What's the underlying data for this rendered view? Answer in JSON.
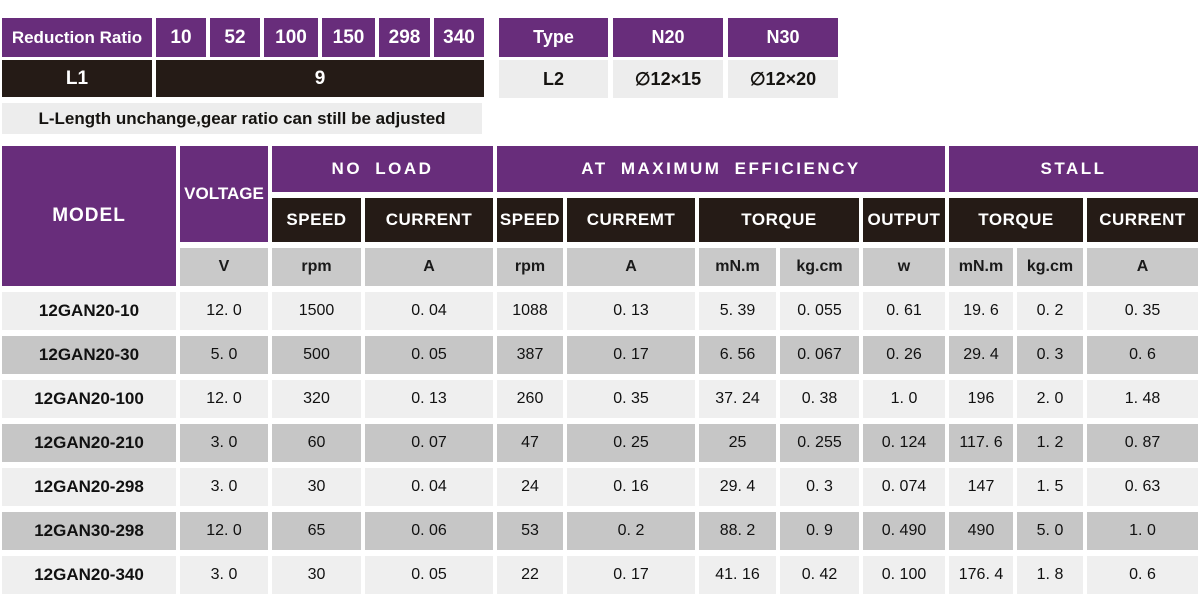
{
  "colors": {
    "accent_purple": "#682d7b",
    "header_black": "#251b16",
    "unit_gray": "#c9c9c9",
    "row_light": "#efefef",
    "row_dark": "#c6c6c6",
    "note_gray": "#ededed"
  },
  "reduction_table": {
    "header_label": "Reduction Ratio",
    "ratios": [
      "10",
      "52",
      "100",
      "150",
      "298",
      "340"
    ],
    "row_label": "L1",
    "row_value": "9",
    "note": "L-Length unchange,gear ratio can still be adjusted"
  },
  "type_table": {
    "header_label": "Type",
    "types": [
      "N20",
      "N30"
    ],
    "row_label": "L2",
    "values": [
      "∅12×15",
      "∅12×20"
    ]
  },
  "main_table": {
    "model_header": "MODEL",
    "voltage_header": "VOLTAGE",
    "groups": {
      "no_load": "NO LOAD",
      "max_eff": "AT MAXIMUM EFFICIENCY",
      "stall": "STALL"
    },
    "sub": [
      "SPEED",
      "CURRENT",
      "SPEED",
      "CURREMT",
      "TORQUE",
      "OUTPUT",
      "TORQUE",
      "CURRENT"
    ],
    "units": [
      "V",
      "rpm",
      "A",
      "rpm",
      "A",
      "mN.m",
      "kg.cm",
      "w",
      "mN.m",
      "kg.cm",
      "A"
    ],
    "rows": [
      {
        "model": "12GAN20-10",
        "values": [
          "12. 0",
          "1500",
          "0. 04",
          "1088",
          "0. 13",
          "5. 39",
          "0. 055",
          "0. 61",
          "19. 6",
          "0. 2",
          "0. 35"
        ]
      },
      {
        "model": "12GAN20-30",
        "values": [
          "5. 0",
          "500",
          "0. 05",
          "387",
          "0. 17",
          "6. 56",
          "0. 067",
          "0. 26",
          "29. 4",
          "0. 3",
          "0. 6"
        ]
      },
      {
        "model": "12GAN20-100",
        "values": [
          "12. 0",
          "320",
          "0. 13",
          "260",
          "0. 35",
          "37. 24",
          "0. 38",
          "1. 0",
          "196",
          "2. 0",
          "1. 48"
        ]
      },
      {
        "model": "12GAN20-210",
        "values": [
          "3. 0",
          "60",
          "0. 07",
          "47",
          "0. 25",
          "25",
          "0. 255",
          "0. 124",
          "117. 6",
          "1. 2",
          "0. 87"
        ]
      },
      {
        "model": "12GAN20-298",
        "values": [
          "3. 0",
          "30",
          "0. 04",
          "24",
          "0. 16",
          "29. 4",
          "0. 3",
          "0. 074",
          "147",
          "1. 5",
          "0. 63"
        ]
      },
      {
        "model": "12GAN30-298",
        "values": [
          "12. 0",
          "65",
          "0. 06",
          "53",
          "0. 2",
          "88. 2",
          "0. 9",
          "0. 490",
          "490",
          "5. 0",
          "1. 0"
        ]
      },
      {
        "model": "12GAN20-340",
        "values": [
          "3. 0",
          "30",
          "0. 05",
          "22",
          "0. 17",
          "41. 16",
          "0. 42",
          "0. 100",
          "176. 4",
          "1. 8",
          "0. 6"
        ]
      }
    ]
  }
}
